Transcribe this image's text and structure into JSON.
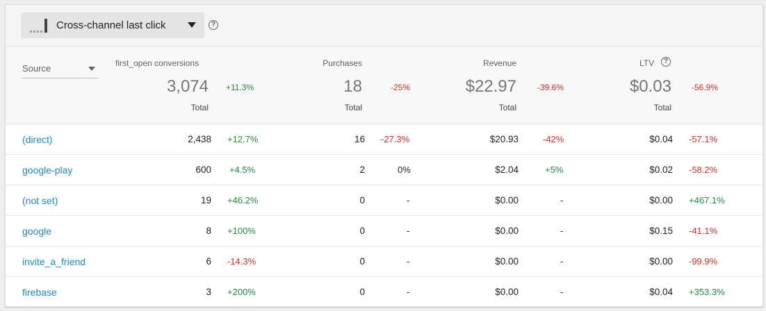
{
  "attribution": {
    "label": "Cross-channel last click"
  },
  "source_selector": {
    "label": "Source"
  },
  "columns": {
    "first_open": {
      "header": "first_open conversions",
      "total": "3,074",
      "change": "+11.3%",
      "change_dir": "pos",
      "total_label": "Total"
    },
    "purchases": {
      "header": "Purchases",
      "total": "18",
      "change": "-25%",
      "change_dir": "neg",
      "total_label": "Total"
    },
    "revenue": {
      "header": "Revenue",
      "total": "$22.97",
      "change": "-39.6%",
      "change_dir": "neg",
      "total_label": "Total"
    },
    "ltv": {
      "header": "LTV",
      "total": "$0.03",
      "change": "-56.9%",
      "change_dir": "neg",
      "total_label": "Total"
    }
  },
  "rows": [
    {
      "source": "(direct)",
      "first_open": "2,438",
      "first_open_change": "+12.7%",
      "first_open_dir": "pos",
      "purchases": "16",
      "purchases_change": "-27.3%",
      "purchases_dir": "neg",
      "revenue": "$20.93",
      "revenue_change": "-42%",
      "revenue_dir": "neg",
      "ltv": "$0.04",
      "ltv_change": "-57.1%",
      "ltv_dir": "neg"
    },
    {
      "source": "google-play",
      "first_open": "600",
      "first_open_change": "+4.5%",
      "first_open_dir": "pos",
      "purchases": "2",
      "purchases_change": "0%",
      "purchases_dir": "neu",
      "revenue": "$2.04",
      "revenue_change": "+5%",
      "revenue_dir": "pos",
      "ltv": "$0.02",
      "ltv_change": "-58.2%",
      "ltv_dir": "neg"
    },
    {
      "source": "(not set)",
      "first_open": "19",
      "first_open_change": "+46.2%",
      "first_open_dir": "pos",
      "purchases": "0",
      "purchases_change": "-",
      "purchases_dir": "neu",
      "revenue": "$0.00",
      "revenue_change": "-",
      "revenue_dir": "neu",
      "ltv": "$0.00",
      "ltv_change": "+467.1%",
      "ltv_dir": "pos"
    },
    {
      "source": "google",
      "first_open": "8",
      "first_open_change": "+100%",
      "first_open_dir": "pos",
      "purchases": "0",
      "purchases_change": "-",
      "purchases_dir": "neu",
      "revenue": "$0.00",
      "revenue_change": "-",
      "revenue_dir": "neu",
      "ltv": "$0.15",
      "ltv_change": "-41.1%",
      "ltv_dir": "neg"
    },
    {
      "source": "invite_a_friend",
      "first_open": "6",
      "first_open_change": "-14.3%",
      "first_open_dir": "neg",
      "purchases": "0",
      "purchases_change": "-",
      "purchases_dir": "neu",
      "revenue": "$0.00",
      "revenue_change": "-",
      "revenue_dir": "neu",
      "ltv": "$0.00",
      "ltv_change": "-99.9%",
      "ltv_dir": "neg"
    },
    {
      "source": "firebase",
      "first_open": "3",
      "first_open_change": "+200%",
      "first_open_dir": "pos",
      "purchases": "0",
      "purchases_change": "-",
      "purchases_dir": "neu",
      "revenue": "$0.00",
      "revenue_change": "-",
      "revenue_dir": "neu",
      "ltv": "$0.04",
      "ltv_change": "+353.3%",
      "ltv_dir": "pos"
    }
  ],
  "colors": {
    "positive": "#1e8e3e",
    "negative": "#d93025",
    "link": "#1e88c8"
  },
  "icons": {
    "attribution": "bar-chart-icon",
    "help": "help-circle-icon",
    "dropdown": "triangle-down-icon"
  }
}
